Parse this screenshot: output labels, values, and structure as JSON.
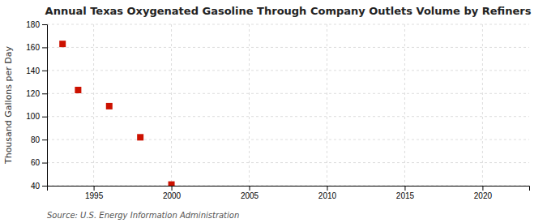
{
  "chart_data": {
    "type": "scatter",
    "title": "Annual Texas Oxygenated Gasoline Through Company Outlets Volume by Refiners",
    "ylabel": "Thousand Gallons per Day",
    "annotations": [
      "Source: U.S. Energy Information Administration"
    ],
    "x": [
      1993,
      1994,
      1996,
      1998,
      2000
    ],
    "values": [
      163,
      123,
      109,
      82,
      41
    ],
    "color": "#cc1100",
    "marker": "square",
    "xlim": [
      1992,
      2023
    ],
    "ylim": [
      40,
      180
    ],
    "xticks": [
      1995,
      2000,
      2005,
      2010,
      2015,
      2020
    ],
    "yticks": [
      40,
      60,
      80,
      100,
      120,
      140,
      160,
      180
    ],
    "grid": true
  }
}
